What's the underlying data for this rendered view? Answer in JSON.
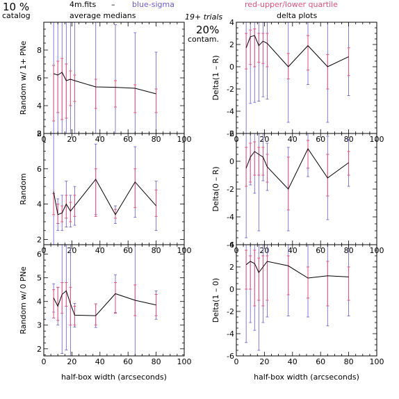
{
  "header": {
    "left_big": "10 %",
    "left_small": "catalog",
    "file": "4m.fits",
    "dash": "–",
    "average": "average medians",
    "blue": "blue-sigma",
    "red": "red-upper/lower quartile",
    "trials": "19+ trials",
    "contam_pct": "20%",
    "contam": "contam.",
    "delta": "delta plots",
    "blue_color": "#6a5acd",
    "red_color": "#e0507a"
  },
  "xlabel": "half-box width (arcseconds)",
  "chart_data": [
    {
      "id": "random-w1plus",
      "type": "line",
      "ylabel": "Random w/ 1+ PNe",
      "xlim": [
        0,
        100
      ],
      "ylim": [
        2,
        10
      ],
      "xticks": [
        0,
        20,
        40,
        60,
        80,
        100
      ],
      "yticks": [
        2,
        4,
        6,
        8
      ],
      "x": [
        7,
        10,
        13,
        16,
        19,
        22,
        37,
        51,
        65,
        80
      ],
      "y": [
        6.3,
        6.2,
        6.4,
        5.8,
        5.9,
        5.8,
        5.35,
        5.32,
        5.25,
        4.85
      ],
      "sigma": [
        5,
        5,
        5,
        5,
        5,
        5,
        5,
        4.5,
        4,
        3
      ],
      "q_lo": [
        2.9,
        3.5,
        3.0,
        3.1,
        4.0,
        4.3,
        3.8,
        3.9,
        3.5,
        3.5
      ],
      "q_hi": [
        6.9,
        7.2,
        7.4,
        7.0,
        6.5,
        6.2,
        5.9,
        5.8,
        5.5,
        5.2
      ]
    },
    {
      "id": "random",
      "type": "line",
      "ylabel": "Random",
      "xlim": [
        0,
        100
      ],
      "ylim": [
        1.7,
        8
      ],
      "xticks": [
        0,
        20,
        40,
        60,
        80,
        100
      ],
      "yticks": [
        2,
        4,
        6,
        8
      ],
      "x": [
        7,
        10,
        13,
        16,
        19,
        22,
        37,
        51,
        65,
        80
      ],
      "y": [
        4.7,
        3.4,
        3.5,
        4.0,
        3.6,
        3.9,
        5.4,
        3.4,
        5.25,
        3.9
      ],
      "sigma": [
        4.0,
        0.9,
        1.0,
        1.3,
        0.9,
        1.1,
        2.0,
        0.5,
        2.0,
        1.4
      ],
      "q_lo": [
        3.4,
        2.9,
        3.0,
        3.2,
        3.0,
        3.3,
        3.3,
        3.2,
        3.8,
        3.3
      ],
      "q_hi": [
        4.6,
        4.0,
        3.9,
        4.5,
        4.1,
        4.5,
        6.0,
        3.7,
        6.0,
        4.8
      ]
    },
    {
      "id": "random-w0",
      "type": "line",
      "ylabel": "Random w/ 0 PNe",
      "xlim": [
        0,
        100
      ],
      "ylim": [
        1.7,
        6.4
      ],
      "xticks": [
        0,
        20,
        40,
        60,
        80,
        100
      ],
      "yticks": [
        2,
        3,
        4,
        5,
        6
      ],
      "x": [
        7,
        10,
        13,
        16,
        19,
        22,
        37,
        51,
        65,
        80
      ],
      "y": [
        4.15,
        3.8,
        4.3,
        4.45,
        3.9,
        3.42,
        3.4,
        4.33,
        4.05,
        3.85
      ],
      "sigma": [
        0.6,
        0.8,
        2.5,
        2.5,
        2.5,
        0.5,
        0.5,
        0.8,
        2.5,
        0.6
      ],
      "q_lo": [
        3.3,
        3.2,
        3.5,
        3.8,
        3.0,
        3.0,
        3.0,
        3.5,
        3.4,
        3.4
      ],
      "q_hi": [
        4.5,
        4.6,
        4.8,
        4.8,
        4.6,
        3.8,
        3.9,
        4.8,
        4.7,
        4.3
      ]
    },
    {
      "id": "delta-1-r",
      "type": "line",
      "ylabel": "Delta(1 – R)",
      "xlim": [
        0,
        100
      ],
      "ylim": [
        -6,
        4
      ],
      "xticks": [
        0,
        20,
        40,
        60,
        80,
        100
      ],
      "yticks": [
        -6,
        -4,
        -2,
        0,
        2,
        4
      ],
      "x": [
        7,
        10,
        13,
        16,
        19,
        22,
        37,
        51,
        65,
        80
      ],
      "y": [
        1.7,
        2.7,
        2.8,
        1.9,
        2.3,
        2.1,
        0.0,
        1.9,
        0.0,
        0.9
      ],
      "sigma": [
        8,
        6,
        6,
        5,
        5,
        5,
        5,
        3.5,
        5,
        3.5
      ],
      "q_lo": [
        -0.2,
        0.2,
        0.0,
        0.4,
        0.3,
        0.0,
        -1.1,
        -0.3,
        -2.0,
        -0.8
      ],
      "q_hi": [
        3.0,
        3.3,
        3.4,
        3.0,
        3.0,
        3.0,
        1.2,
        2.8,
        1.1,
        1.7
      ]
    },
    {
      "id": "delta-0-r",
      "type": "line",
      "ylabel": "Delta(0 – R)",
      "xlim": [
        0,
        100
      ],
      "ylim": [
        -6,
        2
      ],
      "xticks": [
        0,
        20,
        40,
        60,
        80,
        100
      ],
      "yticks": [
        -6,
        -4,
        -2,
        0,
        2
      ],
      "x": [
        7,
        10,
        13,
        16,
        19,
        22,
        37,
        51,
        65,
        80
      ],
      "y": [
        -0.5,
        0.3,
        0.7,
        0.5,
        0.3,
        -0.4,
        -2.0,
        0.9,
        -1.2,
        -0.1
      ],
      "sigma": [
        5.0,
        2.0,
        3.0,
        5.5,
        1.7,
        1.7,
        3.0,
        2.0,
        3.0,
        1.7
      ],
      "q_lo": [
        -1.8,
        -1.5,
        -1.0,
        -1.0,
        -1.0,
        -1.5,
        -3.5,
        -0.5,
        -2.5,
        -1.0
      ],
      "q_hi": [
        1.0,
        1.3,
        1.4,
        1.0,
        1.0,
        0.5,
        0.3,
        1.5,
        0.5,
        0.7
      ]
    },
    {
      "id": "delta-1-0",
      "type": "line",
      "ylabel": "Delta(1 – 0)",
      "xlim": [
        0,
        100
      ],
      "ylim": [
        -6,
        4
      ],
      "xticks": [
        0,
        20,
        40,
        60,
        80,
        100
      ],
      "yticks": [
        -6,
        -4,
        -2,
        0,
        2,
        4
      ],
      "x": [
        7,
        10,
        13,
        16,
        19,
        22,
        37,
        51,
        65,
        80
      ],
      "y": [
        2.2,
        2.5,
        2.3,
        1.5,
        2.0,
        2.5,
        2.1,
        1.0,
        1.2,
        1.1
      ],
      "sigma": [
        7,
        5.5,
        6,
        7,
        5,
        5,
        4.5,
        3.5,
        4.5,
        3.5
      ],
      "q_lo": [
        0.0,
        0.0,
        -1.5,
        -1.0,
        -1.5,
        -1.0,
        -0.5,
        -0.8,
        -1.5,
        -1.0
      ],
      "q_hi": [
        3.5,
        3.0,
        3.5,
        2.8,
        3.0,
        3.0,
        3.0,
        2.0,
        2.5,
        2.0
      ]
    }
  ]
}
